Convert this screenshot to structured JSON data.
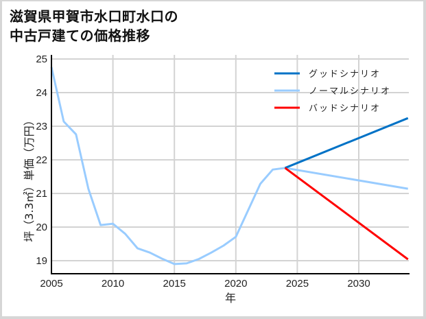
{
  "title_lines": [
    "滋賀県甲賀市水口町水口の",
    "中古戸建ての価格推移"
  ],
  "chart_data": {
    "type": "line",
    "title": "滋賀県甲賀市水口町水口の中古戸建ての価格推移",
    "xlabel": "年",
    "ylabel": "坪（3.3㎡）単価（万円）",
    "xlim": [
      2005,
      2034
    ],
    "ylim": [
      18.6,
      25
    ],
    "xticks": [
      2005,
      2010,
      2015,
      2020,
      2025,
      2030
    ],
    "yticks": [
      19,
      20,
      21,
      22,
      23,
      24,
      25
    ],
    "grid": true,
    "legend_position": "upper right",
    "series": [
      {
        "name": "ノーマルシナリオ",
        "color": "#99ccff",
        "x": [
          2005,
          2006,
          2007,
          2008,
          2009,
          2010,
          2011,
          2012,
          2013,
          2014,
          2015,
          2016,
          2017,
          2018,
          2019,
          2020,
          2021,
          2022,
          2023,
          2024,
          2034
        ],
        "values": [
          24.76,
          23.14,
          22.76,
          21.14,
          20.06,
          20.1,
          19.8,
          19.37,
          19.24,
          19.06,
          18.9,
          18.92,
          19.05,
          19.24,
          19.45,
          19.71,
          20.5,
          21.29,
          21.71,
          21.76,
          21.14
        ]
      },
      {
        "name": "グッドシナリオ",
        "color": "#0072c6",
        "x": [
          2024,
          2034
        ],
        "values": [
          21.76,
          23.24
        ]
      },
      {
        "name": "バッドシナリオ",
        "color": "#ff0000",
        "x": [
          2024,
          2034
        ],
        "values": [
          21.76,
          19.04
        ]
      }
    ]
  },
  "legend": [
    {
      "label": "グッドシナリオ",
      "color": "#0072c6"
    },
    {
      "label": "ノーマルシナリオ",
      "color": "#99ccff"
    },
    {
      "label": "バッドシナリオ",
      "color": "#ff0000"
    }
  ],
  "axis": {
    "xlabel": "年",
    "ylabel": "坪（3.3㎡）単価（万円）",
    "xticks": [
      "2005",
      "2010",
      "2015",
      "2020",
      "2025",
      "2030"
    ],
    "yticks": [
      "25",
      "24",
      "23",
      "22",
      "21",
      "20",
      "19"
    ]
  }
}
